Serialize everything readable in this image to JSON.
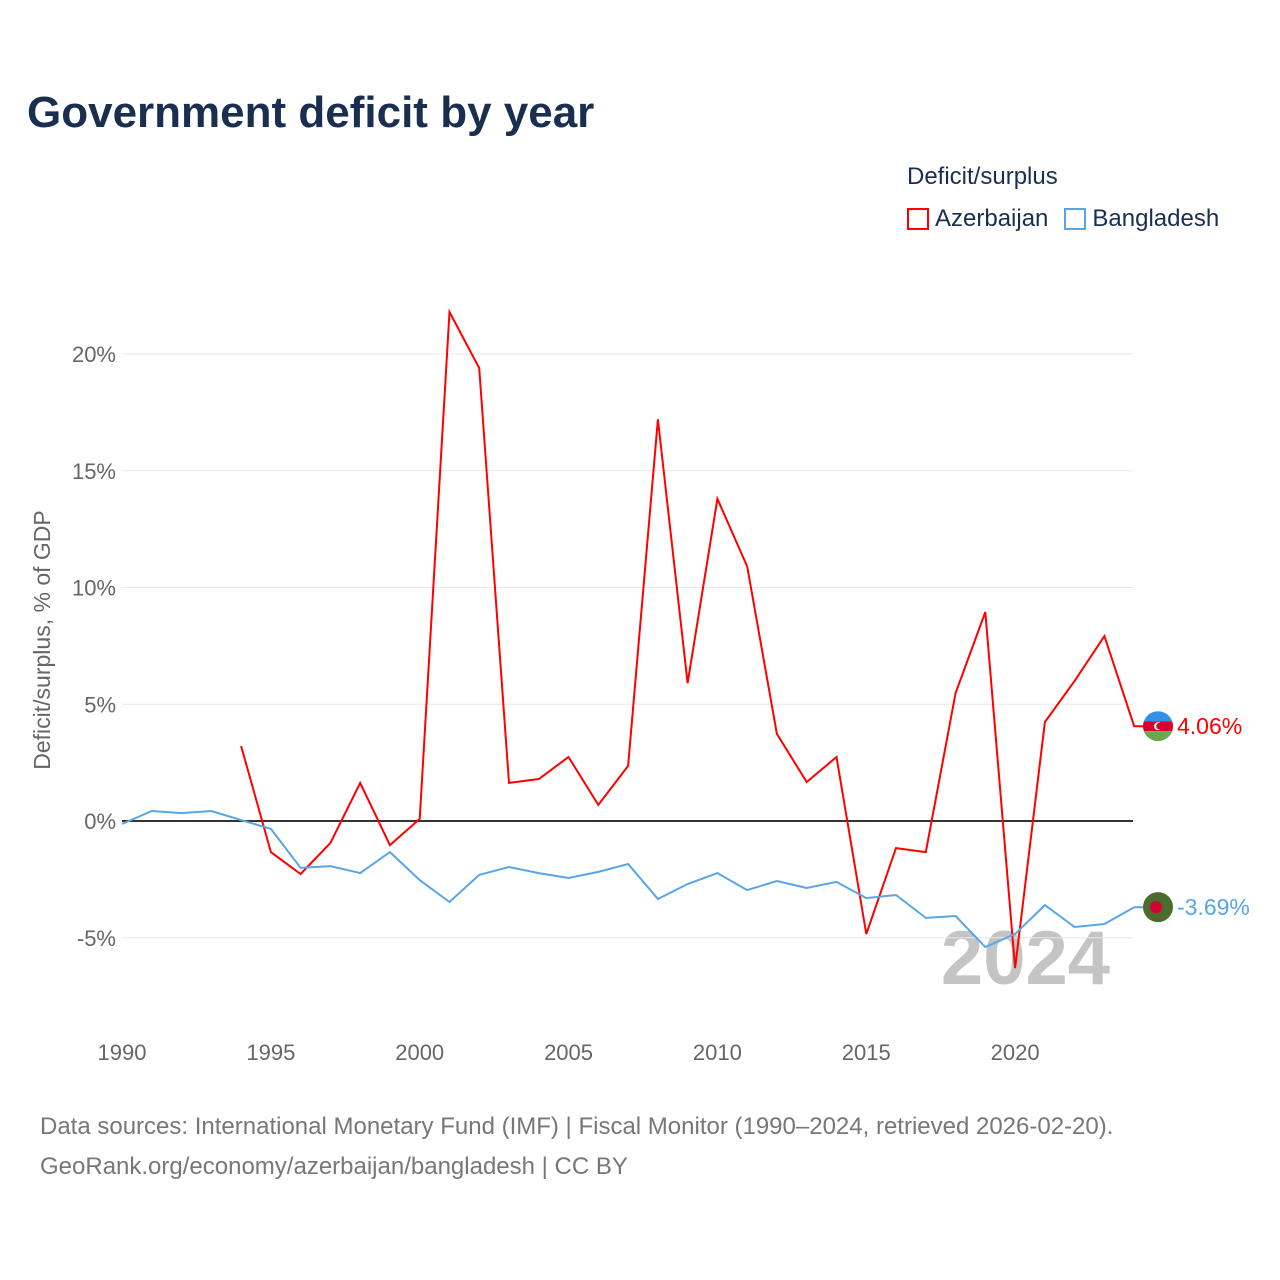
{
  "title": "Government deficit by year",
  "legend": {
    "title": "Deficit/surplus",
    "items": [
      {
        "label": "Azerbaijan",
        "color": "#ff0000"
      },
      {
        "label": "Bangladesh",
        "color": "#5aa5e8"
      }
    ]
  },
  "source_lines": [
    "Data sources: International Monetary Fund (IMF) | Fiscal Monitor (1990–2024, retrieved 2026-02-20).",
    "GeoRank.org/economy/azerbaijan/bangladesh | CC BY"
  ],
  "chart_data": {
    "type": "line",
    "title": "Government deficit by year",
    "xlabel": "",
    "ylabel": "Deficit/surplus, % of GDP",
    "xlim": [
      1990,
      2024
    ],
    "ylim": [
      -7.5,
      23
    ],
    "xticks": [
      1990,
      1995,
      2000,
      2005,
      2010,
      2015,
      2020
    ],
    "yticks": [
      {
        "v": 20,
        "label": "20%"
      },
      {
        "v": 15,
        "label": "15%"
      },
      {
        "v": 10,
        "label": "10%"
      },
      {
        "v": 5,
        "label": "5%"
      },
      {
        "v": 0,
        "label": "0%"
      },
      {
        "v": -5,
        "label": "-5%"
      }
    ],
    "watermark_year": "2024",
    "grid": true,
    "legend_position": "top-right",
    "series": [
      {
        "name": "Azerbaijan",
        "color": "#ff0000",
        "end_label": "4.06%",
        "start_year": 1994,
        "values": [
          3.21,
          -1.33,
          -2.27,
          -0.94,
          1.63,
          -1.03,
          0.09,
          21.8,
          19.4,
          1.63,
          1.8,
          2.74,
          0.69,
          2.36,
          17.2,
          5.9,
          13.8,
          10.9,
          3.73,
          1.67,
          2.74,
          -4.84,
          -1.16,
          -1.33,
          5.48,
          8.95,
          -6.3,
          4.24,
          6.0,
          7.92,
          4.06
        ]
      },
      {
        "name": "Bangladesh",
        "color": "#5aa5e8",
        "end_label": "-3.69%",
        "start_year": 1990,
        "values": [
          -0.13,
          0.43,
          0.34,
          0.43,
          0.04,
          -0.34,
          -2.01,
          -1.93,
          -2.23,
          -1.33,
          -2.53,
          -3.47,
          -2.31,
          -1.97,
          -2.23,
          -2.44,
          -2.18,
          -1.84,
          -3.34,
          -2.7,
          -2.23,
          -2.96,
          -2.57,
          -2.87,
          -2.61,
          -3.3,
          -3.17,
          -4.15,
          -4.07,
          -5.4,
          -4.84,
          -3.6,
          -4.54,
          -4.41,
          -3.69
        ]
      }
    ]
  }
}
